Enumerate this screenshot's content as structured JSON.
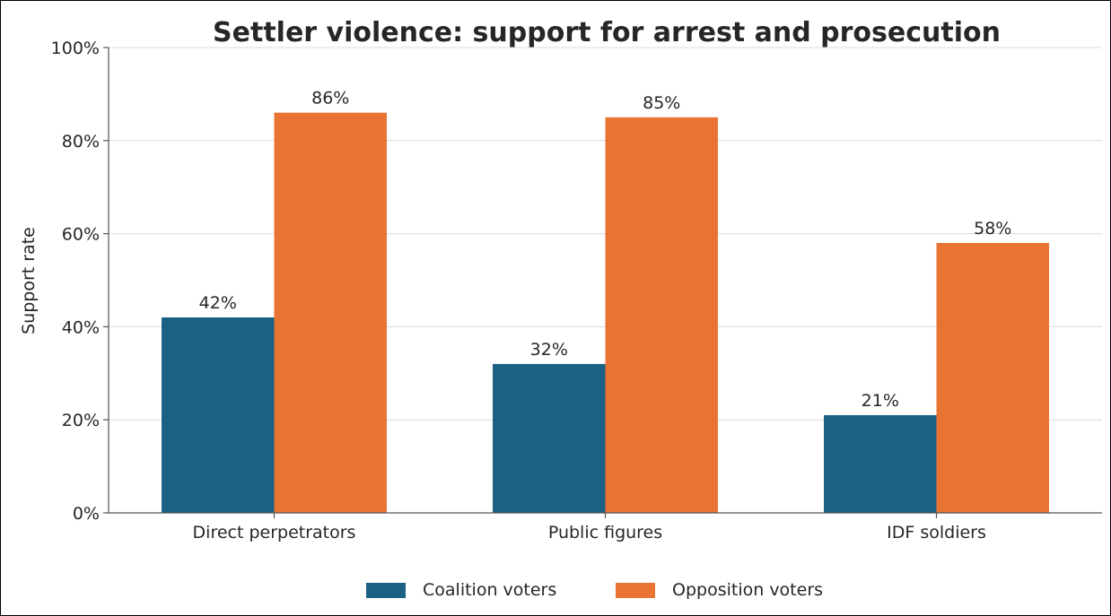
{
  "chart_data": {
    "type": "bar",
    "title": "Settler violence: support for arrest and prosecution",
    "xlabel": "",
    "ylabel": "Support rate",
    "categories": [
      "Direct perpetrators",
      "Public figures",
      "IDF soldiers"
    ],
    "series": [
      {
        "name": "Coalition voters",
        "color": "#1a6183",
        "values": [
          42,
          32,
          21
        ],
        "labels": [
          "42%",
          "32%",
          "21%"
        ]
      },
      {
        "name": "Opposition voters",
        "color": "#e97332",
        "values": [
          86,
          85,
          58
        ],
        "labels": [
          "86%",
          "85%",
          "58%"
        ]
      }
    ],
    "ylim": [
      0,
      100
    ],
    "yticks": [
      0,
      20,
      40,
      60,
      80,
      100
    ],
    "ytick_labels": [
      "0%",
      "20%",
      "40%",
      "60%",
      "80%",
      "100%"
    ],
    "grid": "horizontal",
    "legend_position": "bottom-center"
  }
}
